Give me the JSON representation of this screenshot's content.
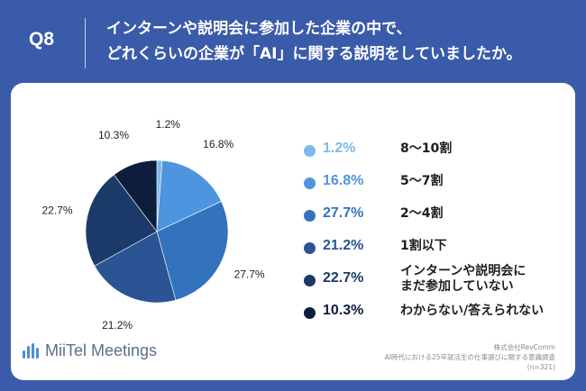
{
  "question": {
    "number": "Q8",
    "title_line1": "インターンや説明会に参加した企業の中で、",
    "title_line2": "どれくらいの企業が「AI」に関する説明をしていましたか。"
  },
  "chart_data": {
    "type": "pie",
    "value_format": "percent",
    "categories": [
      "8〜10割",
      "5〜7割",
      "2〜4割",
      "1割以下",
      "インターンや説明会にまだ参加していない",
      "わからない/答えられない"
    ],
    "label_lines": [
      [
        "8〜10割"
      ],
      [
        "5〜7割"
      ],
      [
        "2〜4割"
      ],
      [
        "1割以下"
      ],
      [
        "インターンや説明会に",
        "まだ参加していない"
      ],
      [
        "わからない/答えられない"
      ]
    ],
    "values": [
      1.2,
      16.8,
      27.7,
      21.2,
      22.7,
      10.3
    ],
    "display_values": [
      "1.2%",
      "16.8%",
      "27.7%",
      "21.2%",
      "22.7%",
      "10.3%"
    ],
    "colors": [
      "#7fb8ec",
      "#4d95df",
      "#3373bd",
      "#2a5494",
      "#1b3a69",
      "#0d1e3d"
    ],
    "start_angle": "12 o'clock",
    "direction": "clockwise",
    "legend_position": "right"
  },
  "footer": {
    "brand": "MiiTel Meetings",
    "source_line1": "株式会社RevComm",
    "source_line2": "AI時代における25卒就活生の仕事選びに関する意識調査",
    "source_line3": "(n=321)"
  },
  "colors": {
    "background": "#3a5ba9",
    "card": "#ffffff",
    "title_text": "#ffffff",
    "logo_accent": "#4a8fd8"
  }
}
